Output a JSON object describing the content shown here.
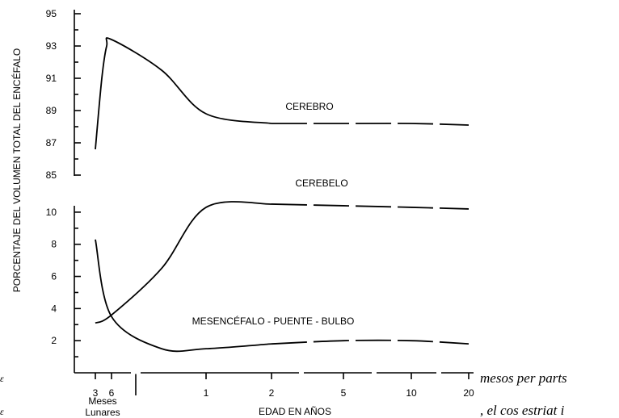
{
  "chart_data": {
    "type": "line",
    "ylabel": "PORCENTAJE DEL VOLUMEN TOTAL DEL ENCÉFALO",
    "xlabel": "EDAD EN AÑOS",
    "x_group_label": [
      "Meses",
      "Lunares"
    ],
    "x_ticks": [
      "3",
      "6",
      "1",
      "2",
      "5",
      "10",
      "20"
    ],
    "y_ticks_upper": [
      "95",
      "93",
      "91",
      "89",
      "87",
      "85"
    ],
    "y_ticks_lower": [
      "10",
      "8",
      "6",
      "4",
      "2"
    ],
    "ylim_upper": [
      85,
      95
    ],
    "ylim_lower": [
      0,
      11
    ],
    "series": [
      {
        "name": "CEREBRO",
        "panel": "upper",
        "points": [
          [
            "3",
            86.6
          ],
          [
            "4",
            91.0
          ],
          [
            "5",
            93.0
          ],
          [
            "6",
            93.4
          ],
          [
            "0.5",
            91.5
          ],
          [
            "1",
            88.8
          ],
          [
            "2",
            88.2
          ],
          [
            "5",
            88.2
          ],
          [
            "10",
            88.2
          ],
          [
            "20",
            88.1
          ]
        ]
      },
      {
        "name": "CEREBELO",
        "panel": "lower",
        "points": [
          [
            "3",
            3.1
          ],
          [
            "6",
            3.6
          ],
          [
            "0.5",
            6.5
          ],
          [
            "1",
            10.3
          ],
          [
            "2",
            10.5
          ],
          [
            "5",
            10.4
          ],
          [
            "10",
            10.3
          ],
          [
            "20",
            10.2
          ]
        ]
      },
      {
        "name": "MESENCÉFALO - PUENTE - BULBO",
        "panel": "lower",
        "points": [
          [
            "3",
            8.3
          ],
          [
            "6",
            3.5
          ],
          [
            "0.5",
            1.5
          ],
          [
            "1",
            1.5
          ],
          [
            "2",
            1.8
          ],
          [
            "5",
            2.0
          ],
          [
            "10",
            2.0
          ],
          [
            "20",
            1.8
          ]
        ]
      }
    ]
  },
  "captions": {
    "right_line1": "mesos per parts",
    "right_line2": ", el cos estriat i",
    "left_frag1": "ε",
    "left_frag2": "ε"
  }
}
